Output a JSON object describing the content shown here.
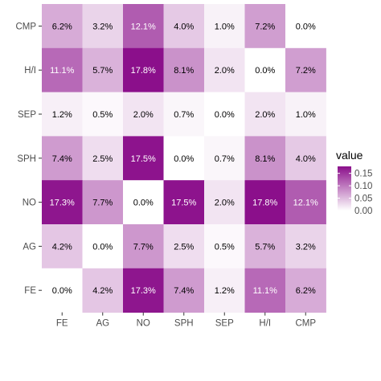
{
  "chart_data": {
    "type": "heatmap",
    "x_categories": [
      "FE",
      "AG",
      "NO",
      "SPH",
      "SEP",
      "H/I",
      "CMP"
    ],
    "y_categories": [
      "CMP",
      "H/I",
      "SEP",
      "SPH",
      "NO",
      "AG",
      "FE"
    ],
    "rows": [
      {
        "y": "CMP",
        "values": [
          0.062,
          0.032,
          0.121,
          0.04,
          0.01,
          0.072,
          0.0
        ],
        "labels": [
          "6.2%",
          "3.2%",
          "12.1%",
          "4.0%",
          "1.0%",
          "7.2%",
          "0.0%"
        ]
      },
      {
        "y": "H/I",
        "values": [
          0.111,
          0.057,
          0.178,
          0.081,
          0.02,
          0.0,
          0.072
        ],
        "labels": [
          "11.1%",
          "5.7%",
          "17.8%",
          "8.1%",
          "2.0%",
          "0.0%",
          "7.2%"
        ]
      },
      {
        "y": "SEP",
        "values": [
          0.012,
          0.005,
          0.02,
          0.007,
          0.0,
          0.02,
          0.01
        ],
        "labels": [
          "1.2%",
          "0.5%",
          "2.0%",
          "0.7%",
          "0.0%",
          "2.0%",
          "1.0%"
        ]
      },
      {
        "y": "SPH",
        "values": [
          0.074,
          0.025,
          0.175,
          0.0,
          0.007,
          0.081,
          0.04
        ],
        "labels": [
          "7.4%",
          "2.5%",
          "17.5%",
          "0.0%",
          "0.7%",
          "8.1%",
          "4.0%"
        ]
      },
      {
        "y": "NO",
        "values": [
          0.173,
          0.077,
          0.0,
          0.175,
          0.02,
          0.178,
          0.121
        ],
        "labels": [
          "17.3%",
          "7.7%",
          "0.0%",
          "17.5%",
          "2.0%",
          "17.8%",
          "12.1%"
        ]
      },
      {
        "y": "AG",
        "values": [
          0.042,
          0.0,
          0.077,
          0.025,
          0.005,
          0.057,
          0.032
        ],
        "labels": [
          "4.2%",
          "0.0%",
          "7.7%",
          "2.5%",
          "0.5%",
          "5.7%",
          "3.2%"
        ]
      },
      {
        "y": "FE",
        "values": [
          0.0,
          0.042,
          0.173,
          0.074,
          0.012,
          0.111,
          0.062
        ],
        "labels": [
          "0.0%",
          "4.2%",
          "17.3%",
          "7.4%",
          "1.2%",
          "11.1%",
          "6.2%"
        ]
      }
    ],
    "value_range": [
      0,
      0.178
    ],
    "color_low": "#ffffff",
    "color_high": "#8b0f8b",
    "label_color_dark": "#000000",
    "label_color_light": "#ffffff",
    "legend": {
      "title": "value",
      "ticks": [
        0.15,
        0.1,
        0.05,
        0.0
      ],
      "tick_labels": [
        "0.15",
        "0.10",
        "0.05",
        "0.00"
      ],
      "placement": "right"
    },
    "title": "",
    "xlabel": "",
    "ylabel": ""
  }
}
